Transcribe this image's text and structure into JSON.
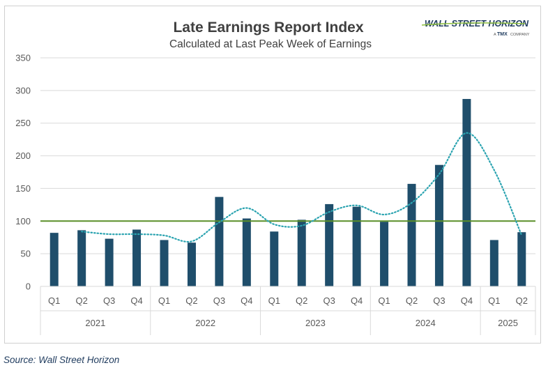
{
  "chart_data": {
    "type": "bar",
    "title": "Late Earnings Report Index",
    "subtitle": "Calculated at Last Peak Week of Earnings",
    "categories": [
      "Q1",
      "Q2",
      "Q3",
      "Q4",
      "Q1",
      "Q2",
      "Q3",
      "Q4",
      "Q1",
      "Q2",
      "Q3",
      "Q4",
      "Q1",
      "Q2",
      "Q3",
      "Q4",
      "Q1",
      "Q2"
    ],
    "groups": [
      {
        "label": "2021",
        "count": 4
      },
      {
        "label": "2022",
        "count": 4
      },
      {
        "label": "2023",
        "count": 4
      },
      {
        "label": "2024",
        "count": 4
      },
      {
        "label": "2025",
        "count": 2
      }
    ],
    "values": [
      82,
      86,
      73,
      87,
      71,
      67,
      137,
      104,
      84,
      102,
      126,
      122,
      99,
      157,
      186,
      287,
      71,
      83
    ],
    "trendline": {
      "style": "dotted",
      "values": [
        null,
        84,
        80,
        80,
        78,
        69,
        98,
        120,
        95,
        93,
        114,
        124,
        110,
        128,
        172,
        235,
        178,
        78
      ]
    },
    "reference_line": {
      "value": 100
    },
    "ylim": [
      0,
      350
    ],
    "yticks": [
      0,
      50,
      100,
      150,
      200,
      250,
      300,
      350
    ],
    "xlabel": "",
    "ylabel": "",
    "grid": "horizontal",
    "colors": {
      "bar": "#1f4e6b",
      "trendline": "#2aa3b0",
      "reference_line": "#5a8f29",
      "grid": "#d9d9d9"
    }
  },
  "logo": {
    "name": "WALL STREET HORIZON",
    "company_prefix": "A",
    "company_mark": "TMX",
    "company_suffix": "COMPANY"
  },
  "source_note": "Source: Wall Street Horizon"
}
